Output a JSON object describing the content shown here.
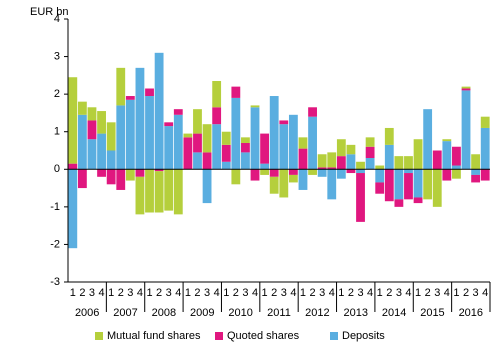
{
  "chart_data": {
    "type": "stacked_bar",
    "y_label": "EUR bn",
    "ylim": [
      -3,
      4
    ],
    "yticks": [
      -3,
      -2,
      -1,
      0,
      1,
      2,
      3,
      4
    ],
    "categories": [
      "1",
      "2",
      "3",
      "4",
      "1",
      "2",
      "3",
      "4",
      "1",
      "2",
      "3",
      "4",
      "1",
      "2",
      "3",
      "4",
      "1",
      "2",
      "3",
      "4",
      "1",
      "2",
      "3",
      "4",
      "1",
      "2",
      "3",
      "4",
      "1",
      "2",
      "3",
      "4",
      "1",
      "2",
      "3",
      "4",
      "1",
      "2",
      "3",
      "4",
      "1",
      "2",
      "3",
      "4"
    ],
    "years": [
      "2006",
      "2007",
      "2008",
      "2009",
      "2010",
      "2011",
      "2012",
      "2013",
      "2014",
      "2015",
      "2016"
    ],
    "series": [
      {
        "name": "Mutual fund shares",
        "color": "#b5cf3c",
        "values": [
          2.3,
          0.35,
          0.35,
          0.6,
          0.75,
          1.0,
          -0.3,
          -1.0,
          -1.15,
          -1.1,
          -1.1,
          -1.2,
          0.1,
          0.65,
          0.75,
          0.7,
          0.35,
          -0.4,
          0.15,
          0.05,
          -0.15,
          -0.45,
          -0.75,
          -0.2,
          0.3,
          -0.15,
          0.35,
          0.4,
          0.45,
          0.25,
          0.2,
          0.25,
          0.1,
          0.45,
          0.35,
          0.35,
          0.8,
          -0.8,
          -1.0,
          0.05,
          -0.25,
          0.05,
          0.4,
          0.3
        ]
      },
      {
        "name": "Quoted shares",
        "color": "#e0177f",
        "values": [
          0.15,
          -0.5,
          0.5,
          -0.2,
          -0.4,
          -0.55,
          0.1,
          -0.2,
          0.2,
          -0.05,
          0.1,
          0.15,
          0.85,
          0.5,
          0.45,
          0.45,
          0.45,
          0.3,
          0.25,
          -0.3,
          0.8,
          -0.2,
          0.1,
          -0.15,
          0.55,
          0.25,
          0.05,
          0.05,
          0.35,
          -0.1,
          -1.3,
          0.3,
          -0.3,
          -0.85,
          -0.2,
          -0.7,
          -0.15,
          0,
          0.5,
          -0.3,
          0.5,
          0.05,
          -0.2,
          -0.3
        ]
      },
      {
        "name": "Deposits",
        "color": "#5aaee0",
        "values": [
          -2.1,
          1.45,
          0.8,
          0.95,
          0.5,
          1.7,
          1.85,
          2.7,
          1.95,
          3.1,
          1.15,
          1.45,
          0,
          0.45,
          -0.9,
          1.2,
          0.2,
          1.9,
          0.45,
          1.65,
          0.15,
          1.95,
          1.2,
          1.45,
          -0.55,
          1.4,
          -0.2,
          -0.8,
          -0.25,
          0.4,
          -0.1,
          0.3,
          -0.35,
          0.65,
          -0.8,
          -0.1,
          -0.75,
          1.6,
          0,
          0.75,
          0.1,
          2.1,
          -0.15,
          1.1
        ]
      }
    ]
  }
}
